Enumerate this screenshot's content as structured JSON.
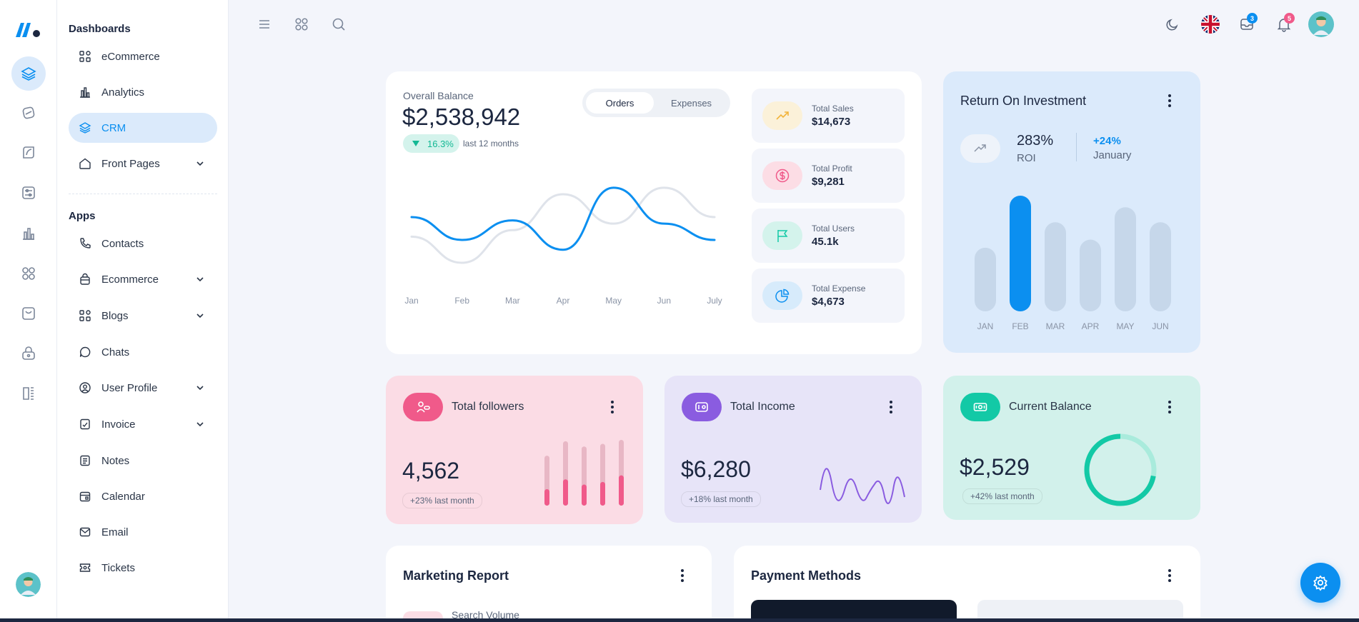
{
  "colors": {
    "accent": "#0b8ff0",
    "pink": "#f05a8a",
    "purple": "#8a5ce0",
    "teal": "#13c9a6"
  },
  "sidebar": {
    "dashboards_title": "Dashboards",
    "apps_title": "Apps",
    "dashboards": [
      {
        "label": "eCommerce",
        "icon": "widgets-icon"
      },
      {
        "label": "Analytics",
        "icon": "chart-icon"
      },
      {
        "label": "CRM",
        "icon": "layers-icon",
        "active": true
      },
      {
        "label": "Front Pages",
        "icon": "home-icon",
        "expand": true
      }
    ],
    "apps": [
      {
        "label": "Contacts",
        "icon": "phone-icon"
      },
      {
        "label": "Ecommerce",
        "icon": "basket-icon",
        "expand": true
      },
      {
        "label": "Blogs",
        "icon": "widgets-icon",
        "expand": true
      },
      {
        "label": "Chats",
        "icon": "chat-icon"
      },
      {
        "label": "User Profile",
        "icon": "user-circle-icon",
        "expand": true
      },
      {
        "label": "Invoice",
        "icon": "invoice-icon",
        "expand": true
      },
      {
        "label": "Notes",
        "icon": "note-icon"
      },
      {
        "label": "Calendar",
        "icon": "calendar-icon"
      },
      {
        "label": "Email",
        "icon": "mail-icon"
      },
      {
        "label": "Tickets",
        "icon": "ticket-icon"
      }
    ]
  },
  "topbar": {
    "messages_count": "3",
    "notifications_count": "5"
  },
  "balance": {
    "label": "Overall Balance",
    "amount": "$2,538,942",
    "change": "16.3%",
    "period": "last 12 months",
    "tabs": [
      "Orders",
      "Expenses"
    ]
  },
  "chart_data": {
    "type": "line",
    "x": [
      "Jan",
      "Feb",
      "Mar",
      "Apr",
      "May",
      "Jun",
      "July"
    ],
    "series": [
      {
        "name": "Orders",
        "values": [
          42,
          28,
          40,
          22,
          60,
          38,
          28
        ],
        "color": "#0b8ff0"
      },
      {
        "name": "Expenses",
        "values": [
          30,
          14,
          34,
          56,
          38,
          60,
          42
        ],
        "color": "#dfe3ea"
      }
    ]
  },
  "stats": [
    {
      "label": "Total Sales",
      "value": "$14,673",
      "icon": "trend-up-icon",
      "bg": "#fbf1d9",
      "fg": "#f2b43a"
    },
    {
      "label": "Total Profit",
      "value": "$9,281",
      "icon": "dollar-icon",
      "bg": "#fcdde5",
      "fg": "#f05a8a"
    },
    {
      "label": "Total Users",
      "value": "45.1k",
      "icon": "flag-icon",
      "bg": "#d4f3ec",
      "fg": "#13c9a6"
    },
    {
      "label": "Total Expense",
      "value": "$4,673",
      "icon": "pie-icon",
      "bg": "#d7ebfb",
      "fg": "#0b8ff0"
    }
  ],
  "roi": {
    "title": "Return On Investment",
    "value": "283%",
    "value_label": "ROI",
    "change": "+24%",
    "month": "January",
    "months": [
      "JAN",
      "FEB",
      "MAR",
      "APR",
      "MAY",
      "JUN"
    ],
    "bars": [
      55,
      100,
      77,
      62,
      90,
      77
    ],
    "active_index": 1
  },
  "followers": {
    "title": "Total followers",
    "value": "4,562",
    "change": "+23% last month",
    "bars_total": [
      0.76,
      0.98,
      0.9,
      0.94,
      1.0
    ],
    "bars_fill": [
      0.25,
      0.4,
      0.32,
      0.36,
      0.46
    ]
  },
  "income": {
    "title": "Total Income",
    "value": "$6,280",
    "change": "+18% last month"
  },
  "current_balance": {
    "title": "Current Balance",
    "value": "$2,529",
    "change": "+42% last month",
    "progress": 0.72
  },
  "marketing": {
    "title": "Marketing Report",
    "item": "Search Volume"
  },
  "payment": {
    "title": "Payment Methods"
  }
}
